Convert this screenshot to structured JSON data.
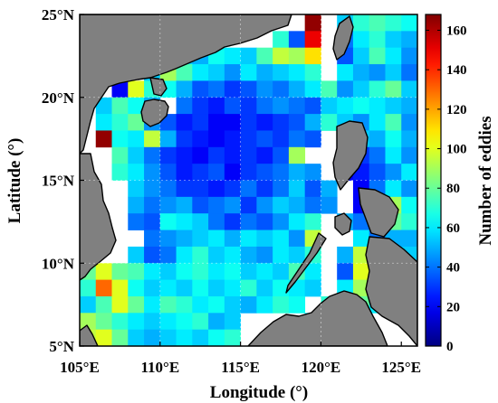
{
  "chart_data": {
    "type": "heatmap",
    "title": "",
    "xlabel": "Longitude (°)",
    "ylabel": "Latitude (°)",
    "colorbar_label": "Number of eddies",
    "xlim": [
      105,
      126
    ],
    "ylim": [
      5,
      25
    ],
    "x_ticks": [
      "105°E",
      "110°E",
      "115°E",
      "120°E",
      "125°E"
    ],
    "y_ticks": [
      "5°N",
      "10°N",
      "15°N",
      "20°N",
      "25°N"
    ],
    "colorbar_range": [
      0,
      168
    ],
    "colorbar_ticks": [
      "0",
      "20",
      "40",
      "60",
      "80",
      "100",
      "120",
      "140",
      "160"
    ],
    "colormap": "jet",
    "land_color": "#808080",
    "cell_size_deg": 1,
    "lon_centers": [
      105.5,
      106.5,
      107.5,
      108.5,
      109.5,
      110.5,
      111.5,
      112.5,
      113.5,
      114.5,
      115.5,
      116.5,
      117.5,
      118.5,
      119.5,
      120.5,
      121.5,
      122.5,
      123.5,
      124.5,
      125.5
    ],
    "lat_centers": [
      24.5,
      23.5,
      22.5,
      21.5,
      20.5,
      19.5,
      18.5,
      17.5,
      16.5,
      15.5,
      14.5,
      13.5,
      12.5,
      11.5,
      10.5,
      9.5,
      8.5,
      7.5,
      6.5,
      5.5
    ],
    "values": [
      [
        null,
        null,
        null,
        null,
        null,
        null,
        null,
        null,
        null,
        null,
        null,
        null,
        null,
        null,
        165,
        null,
        55,
        70,
        75,
        70,
        65
      ],
      [
        null,
        null,
        null,
        null,
        null,
        null,
        null,
        null,
        null,
        null,
        null,
        null,
        70,
        35,
        150,
        null,
        40,
        60,
        70,
        55,
        50
      ],
      [
        null,
        null,
        null,
        null,
        null,
        60,
        55,
        50,
        65,
        60,
        55,
        75,
        95,
        90,
        110,
        null,
        35,
        55,
        75,
        60,
        45
      ],
      [
        null,
        null,
        null,
        null,
        55,
        90,
        75,
        60,
        55,
        45,
        60,
        50,
        55,
        60,
        70,
        null,
        60,
        50,
        45,
        55,
        40
      ],
      [
        null,
        null,
        20,
        100,
        70,
        65,
        50,
        35,
        40,
        30,
        35,
        45,
        40,
        50,
        60,
        75,
        45,
        55,
        70,
        80,
        55
      ],
      [
        null,
        55,
        75,
        65,
        50,
        null,
        40,
        30,
        25,
        35,
        30,
        40,
        45,
        40,
        35,
        55,
        60,
        65,
        60,
        55,
        50
      ],
      [
        null,
        60,
        70,
        80,
        45,
        35,
        25,
        30,
        20,
        20,
        30,
        25,
        30,
        35,
        50,
        70,
        55,
        45,
        60,
        75,
        45
      ],
      [
        null,
        165,
        65,
        60,
        95,
        50,
        30,
        25,
        20,
        25,
        30,
        35,
        30,
        40,
        35,
        null,
        40,
        55,
        50,
        65,
        50
      ],
      [
        null,
        null,
        75,
        55,
        40,
        30,
        25,
        20,
        30,
        25,
        30,
        25,
        35,
        90,
        null,
        null,
        15,
        30,
        40,
        60,
        45
      ],
      [
        null,
        null,
        70,
        60,
        45,
        35,
        25,
        30,
        35,
        20,
        30,
        35,
        40,
        50,
        45,
        null,
        20,
        25,
        35,
        45,
        60
      ],
      [
        null,
        null,
        null,
        55,
        45,
        40,
        30,
        30,
        25,
        30,
        40,
        30,
        40,
        55,
        35,
        50,
        null,
        20,
        40,
        60,
        45
      ],
      [
        null,
        null,
        null,
        50,
        40,
        45,
        50,
        35,
        40,
        45,
        30,
        45,
        55,
        50,
        40,
        45,
        null,
        20,
        55,
        90,
        65
      ],
      [
        null,
        null,
        null,
        40,
        35,
        65,
        60,
        55,
        40,
        30,
        40,
        35,
        45,
        60,
        70,
        null,
        50,
        40,
        140,
        80,
        70
      ],
      [
        null,
        null,
        null,
        null,
        40,
        45,
        50,
        55,
        60,
        50,
        60,
        55,
        60,
        45,
        95,
        null,
        null,
        60,
        40,
        50,
        50
      ],
      [
        null,
        null,
        null,
        55,
        35,
        40,
        60,
        70,
        55,
        60,
        50,
        45,
        60,
        55,
        70,
        null,
        50,
        95,
        50,
        40,
        55
      ],
      [
        80,
        100,
        80,
        75,
        60,
        55,
        65,
        70,
        60,
        65,
        55,
        60,
        55,
        75,
        60,
        null,
        35,
        100,
        55,
        50,
        null
      ],
      [
        70,
        130,
        100,
        65,
        55,
        60,
        55,
        65,
        55,
        60,
        70,
        55,
        65,
        60,
        55,
        null,
        60,
        90,
        60,
        null,
        null
      ],
      [
        55,
        75,
        100,
        80,
        60,
        75,
        70,
        60,
        65,
        55,
        50,
        60,
        70,
        65,
        null,
        70,
        75,
        80,
        60,
        55,
        null
      ],
      [
        90,
        80,
        70,
        60,
        55,
        60,
        65,
        70,
        50,
        55,
        null,
        null,
        null,
        null,
        60,
        60,
        55,
        70,
        null,
        null,
        null
      ],
      [
        95,
        100,
        80,
        55,
        50,
        55,
        60,
        55,
        65,
        70,
        null,
        null,
        null,
        null,
        null,
        null,
        50,
        65,
        null,
        null,
        null
      ]
    ]
  }
}
